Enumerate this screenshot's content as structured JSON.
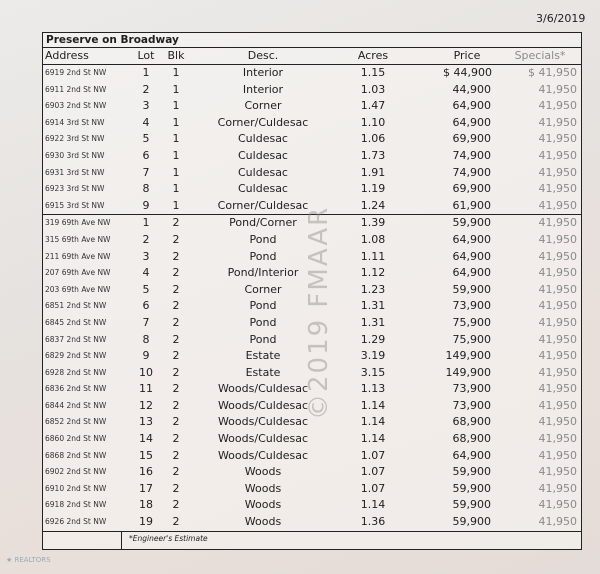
{
  "date": "3/6/2019",
  "title": "Preserve on Broadway",
  "columns": {
    "address": "Address",
    "lot": "Lot",
    "blk": "Blk",
    "desc": "Desc.",
    "acres": "Acres",
    "price": "Price",
    "specials": "Specials*"
  },
  "block1": [
    {
      "address": "6919 2nd St NW",
      "lot": "1",
      "blk": "1",
      "desc": "Interior",
      "acres": "1.15",
      "price": "$ 44,900",
      "specials": "$ 41,950"
    },
    {
      "address": "6911 2nd St NW",
      "lot": "2",
      "blk": "1",
      "desc": "Interior",
      "acres": "1.03",
      "price": "44,900",
      "specials": "41,950"
    },
    {
      "address": "6903 2nd St NW",
      "lot": "3",
      "blk": "1",
      "desc": "Corner",
      "acres": "1.47",
      "price": "64,900",
      "specials": "41,950"
    },
    {
      "address": "6914 3rd St NW",
      "lot": "4",
      "blk": "1",
      "desc": "Corner/Culdesac",
      "acres": "1.10",
      "price": "64,900",
      "specials": "41,950"
    },
    {
      "address": "6922 3rd St NW",
      "lot": "5",
      "blk": "1",
      "desc": "Culdesac",
      "acres": "1.06",
      "price": "69,900",
      "specials": "41,950"
    },
    {
      "address": "6930 3rd St NW",
      "lot": "6",
      "blk": "1",
      "desc": "Culdesac",
      "acres": "1.73",
      "price": "74,900",
      "specials": "41,950"
    },
    {
      "address": "6931 3rd St NW",
      "lot": "7",
      "blk": "1",
      "desc": "Culdesac",
      "acres": "1.91",
      "price": "74,900",
      "specials": "41,950"
    },
    {
      "address": "6923 3rd St NW",
      "lot": "8",
      "blk": "1",
      "desc": "Culdesac",
      "acres": "1.19",
      "price": "69,900",
      "specials": "41,950"
    },
    {
      "address": "6915 3rd St NW",
      "lot": "9",
      "blk": "1",
      "desc": "Corner/Culdesac",
      "acres": "1.24",
      "price": "61,900",
      "specials": "41,950"
    }
  ],
  "block2": [
    {
      "address": "319 69th Ave NW",
      "lot": "1",
      "blk": "2",
      "desc": "Pond/Corner",
      "acres": "1.39",
      "price": "59,900",
      "specials": "41,950"
    },
    {
      "address": "315 69th Ave NW",
      "lot": "2",
      "blk": "2",
      "desc": "Pond",
      "acres": "1.08",
      "price": "64,900",
      "specials": "41,950"
    },
    {
      "address": "211 69th Ave NW",
      "lot": "3",
      "blk": "2",
      "desc": "Pond",
      "acres": "1.11",
      "price": "64,900",
      "specials": "41,950"
    },
    {
      "address": "207 69th Ave NW",
      "lot": "4",
      "blk": "2",
      "desc": "Pond/Interior",
      "acres": "1.12",
      "price": "64,900",
      "specials": "41,950"
    },
    {
      "address": "203 69th Ave NW",
      "lot": "5",
      "blk": "2",
      "desc": "Corner",
      "acres": "1.23",
      "price": "59,900",
      "specials": "41,950"
    },
    {
      "address": "6851 2nd St NW",
      "lot": "6",
      "blk": "2",
      "desc": "Pond",
      "acres": "1.31",
      "price": "73,900",
      "specials": "41,950"
    },
    {
      "address": "6845 2nd St NW",
      "lot": "7",
      "blk": "2",
      "desc": "Pond",
      "acres": "1.31",
      "price": "75,900",
      "specials": "41,950"
    },
    {
      "address": "6837 2nd St NW",
      "lot": "8",
      "blk": "2",
      "desc": "Pond",
      "acres": "1.29",
      "price": "75,900",
      "specials": "41,950"
    },
    {
      "address": "6829 2nd St NW",
      "lot": "9",
      "blk": "2",
      "desc": "Estate",
      "acres": "3.19",
      "price": "149,900",
      "specials": "41,950"
    },
    {
      "address": "6928 2nd St NW",
      "lot": "10",
      "blk": "2",
      "desc": "Estate",
      "acres": "3.15",
      "price": "149,900",
      "specials": "41,950"
    },
    {
      "address": "6836 2nd St NW",
      "lot": "11",
      "blk": "2",
      "desc": "Woods/Culdesac",
      "acres": "1.13",
      "price": "73,900",
      "specials": "41,950"
    },
    {
      "address": "6844 2nd St NW",
      "lot": "12",
      "blk": "2",
      "desc": "Woods/Culdesac",
      "acres": "1.14",
      "price": "73,900",
      "specials": "41,950"
    },
    {
      "address": "6852 2nd St NW",
      "lot": "13",
      "blk": "2",
      "desc": "Woods/Culdesac",
      "acres": "1.14",
      "price": "68,900",
      "specials": "41,950"
    },
    {
      "address": "6860 2nd St NW",
      "lot": "14",
      "blk": "2",
      "desc": "Woods/Culdesac",
      "acres": "1.14",
      "price": "68,900",
      "specials": "41,950"
    },
    {
      "address": "6868 2nd St NW",
      "lot": "15",
      "blk": "2",
      "desc": "Woods/Culdesac",
      "acres": "1.07",
      "price": "64,900",
      "specials": "41,950"
    },
    {
      "address": "6902 2nd St NW",
      "lot": "16",
      "blk": "2",
      "desc": "Woods",
      "acres": "1.07",
      "price": "59,900",
      "specials": "41,950"
    },
    {
      "address": "6910 2nd St NW",
      "lot": "17",
      "blk": "2",
      "desc": "Woods",
      "acres": "1.07",
      "price": "59,900",
      "specials": "41,950"
    },
    {
      "address": "6918 2nd St NW",
      "lot": "18",
      "blk": "2",
      "desc": "Woods",
      "acres": "1.14",
      "price": "59,900",
      "specials": "41,950"
    },
    {
      "address": "6926 2nd St NW",
      "lot": "19",
      "blk": "2",
      "desc": "Woods",
      "acres": "1.36",
      "price": "59,900",
      "specials": "41,950"
    }
  ],
  "footnote": "*Engineer's Estimate",
  "watermark": "©2019 FMAAR",
  "logo": "REALTORS"
}
